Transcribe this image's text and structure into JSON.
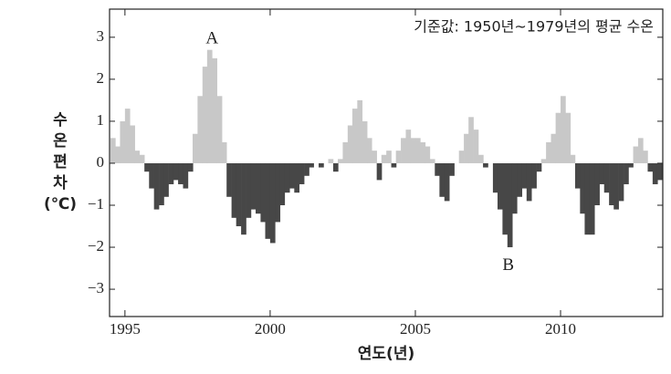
{
  "chart_data": {
    "type": "bar",
    "note": "기준값: 1950년~1979년의 평균 수온",
    "xlabel": "연도(년)",
    "ylabel": [
      "수",
      "온",
      "편",
      "차",
      "(℃)"
    ],
    "pos_color": "#c8c8c8",
    "neg_color": "#474747",
    "bar_step": 0.1667,
    "xlim": [
      1994.47,
      2013.52
    ],
    "xticks": [
      1995,
      2000,
      2005,
      2010
    ],
    "ylim": [
      -3.65,
      3.67
    ],
    "yticks": [
      {
        "value": -3,
        "label": "−3"
      },
      {
        "value": -2,
        "label": "−2"
      },
      {
        "value": -1,
        "label": "−1"
      },
      0,
      1,
      2,
      3
    ],
    "annotations": [
      {
        "text": "A",
        "x": 1998,
        "y": 2.95
      },
      {
        "text": "B",
        "x": 2008.2,
        "y": -2.45
      }
    ],
    "x": [
      1994.5,
      1994.67,
      1994.83,
      1995.0,
      1995.17,
      1995.33,
      1995.5,
      1995.67,
      1995.83,
      1996.0,
      1996.17,
      1996.33,
      1996.5,
      1996.67,
      1996.83,
      1997.0,
      1997.17,
      1997.33,
      1997.5,
      1997.67,
      1997.83,
      1998.0,
      1998.17,
      1998.33,
      1998.5,
      1998.67,
      1998.83,
      1999.0,
      1999.17,
      1999.33,
      1999.5,
      1999.67,
      1999.83,
      2000.0,
      2000.17,
      2000.33,
      2000.5,
      2000.67,
      2000.83,
      2001.0,
      2001.17,
      2001.33,
      2001.5,
      2001.67,
      2001.83,
      2002.0,
      2002.17,
      2002.33,
      2002.5,
      2002.67,
      2002.83,
      2003.0,
      2003.17,
      2003.33,
      2003.5,
      2003.67,
      2003.83,
      2004.0,
      2004.17,
      2004.33,
      2004.5,
      2004.67,
      2004.83,
      2005.0,
      2005.17,
      2005.33,
      2005.5,
      2005.67,
      2005.83,
      2006.0,
      2006.17,
      2006.33,
      2006.5,
      2006.67,
      2006.83,
      2007.0,
      2007.17,
      2007.33,
      2007.5,
      2007.67,
      2007.83,
      2008.0,
      2008.17,
      2008.33,
      2008.5,
      2008.67,
      2008.83,
      2009.0,
      2009.17,
      2009.33,
      2009.5,
      2009.67,
      2009.83,
      2010.0,
      2010.17,
      2010.33,
      2010.5,
      2010.67,
      2010.83,
      2011.0,
      2011.17,
      2011.33,
      2011.5,
      2011.67,
      2011.83,
      2012.0,
      2012.17,
      2012.33,
      2012.5,
      2012.67,
      2012.83,
      2013.0,
      2013.17,
      2013.33
    ],
    "values": [
      0.6,
      0.4,
      1.0,
      1.3,
      0.9,
      0.3,
      0.2,
      -0.2,
      -0.6,
      -1.1,
      -1.0,
      -0.8,
      -0.5,
      -0.4,
      -0.5,
      -0.6,
      -0.2,
      0.7,
      1.6,
      2.3,
      2.7,
      2.5,
      1.6,
      0.5,
      -0.8,
      -1.3,
      -1.5,
      -1.7,
      -1.3,
      -1.1,
      -1.2,
      -1.4,
      -1.8,
      -1.9,
      -1.4,
      -1.0,
      -0.7,
      -0.6,
      -0.7,
      -0.5,
      -0.3,
      -0.1,
      0.0,
      -0.1,
      0.0,
      0.1,
      -0.2,
      0.1,
      0.5,
      0.9,
      1.3,
      1.5,
      1.0,
      0.6,
      0.3,
      -0.4,
      0.2,
      0.3,
      -0.1,
      0.3,
      0.6,
      0.8,
      0.6,
      0.6,
      0.5,
      0.4,
      0.1,
      -0.3,
      -0.8,
      -0.9,
      -0.3,
      0.0,
      0.3,
      0.7,
      1.1,
      0.8,
      0.2,
      -0.1,
      0.0,
      -0.7,
      -1.1,
      -1.7,
      -2.0,
      -1.2,
      -0.8,
      -0.6,
      -0.9,
      -0.6,
      -0.2,
      0.1,
      0.5,
      0.7,
      1.2,
      1.6,
      1.2,
      0.2,
      -0.6,
      -1.2,
      -1.7,
      -1.7,
      -1.0,
      -0.5,
      -0.7,
      -1.0,
      -1.1,
      -0.9,
      -0.5,
      -0.1,
      0.4,
      0.6,
      0.3,
      -0.2,
      -0.5,
      -0.4
    ]
  }
}
